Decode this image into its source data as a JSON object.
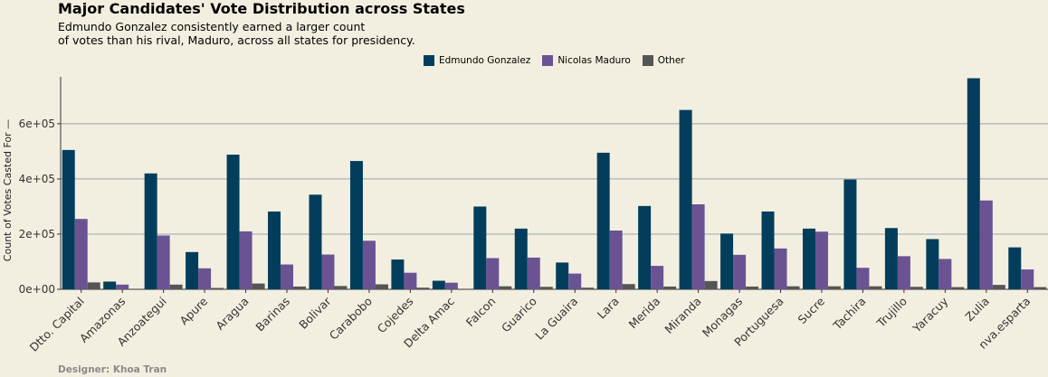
{
  "chart_data": {
    "type": "bar",
    "title": "Major Candidates' Vote Distribution across States",
    "subtitle_lines": [
      "Edmundo Gonzalez consistently earned a larger count",
      "of votes than his rival, Maduro, across all states for presidency."
    ],
    "ylabel": "Count of Votes Casted For —",
    "xlabel": "",
    "caption": "Designer: Khoa Tran",
    "ylim": [
      0,
      770000
    ],
    "yticks": [
      0,
      200000,
      400000,
      600000
    ],
    "ytick_labels": [
      "0e+00",
      "2e+05",
      "4e+05",
      "6e+05"
    ],
    "grid": true,
    "legend_position": "top",
    "categories": [
      "Dtto. Capital",
      "Amazonas",
      "Anzoategui",
      "Apure",
      "Aragua",
      "Barinas",
      "Bolivar",
      "Carabobo",
      "Cojedes",
      "Delta Amac",
      "Falcon",
      "Guarico",
      "La Guaira",
      "Lara",
      "Merida",
      "Miranda",
      "Monagas",
      "Portuguesa",
      "Sucre",
      "Tachira",
      "Trujillo",
      "Yaracuy",
      "Zulia",
      "nva.esparta"
    ],
    "series": [
      {
        "name": "Edmundo Gonzalez",
        "color": "#023e5b",
        "values": [
          505000,
          28000,
          420000,
          135000,
          488000,
          282000,
          343000,
          465000,
          108000,
          31000,
          300000,
          220000,
          97000,
          495000,
          302000,
          650000,
          202000,
          282000,
          220000,
          398000,
          222000,
          182000,
          765000,
          152000
        ]
      },
      {
        "name": "Nicolas Maduro",
        "color": "#6b5393",
        "values": [
          255000,
          17000,
          195000,
          76000,
          210000,
          90000,
          126000,
          176000,
          60000,
          24000,
          113000,
          115000,
          57000,
          213000,
          85000,
          308000,
          125000,
          148000,
          209000,
          78000,
          120000,
          110000,
          322000,
          72000
        ]
      },
      {
        "name": "Other",
        "color": "#555555",
        "values": [
          25000,
          2000,
          17000,
          5000,
          21000,
          10000,
          12000,
          18000,
          6000,
          2000,
          11000,
          9000,
          6000,
          19000,
          10000,
          30000,
          10000,
          11000,
          11000,
          11000,
          9000,
          8000,
          16000,
          8000
        ]
      }
    ]
  }
}
